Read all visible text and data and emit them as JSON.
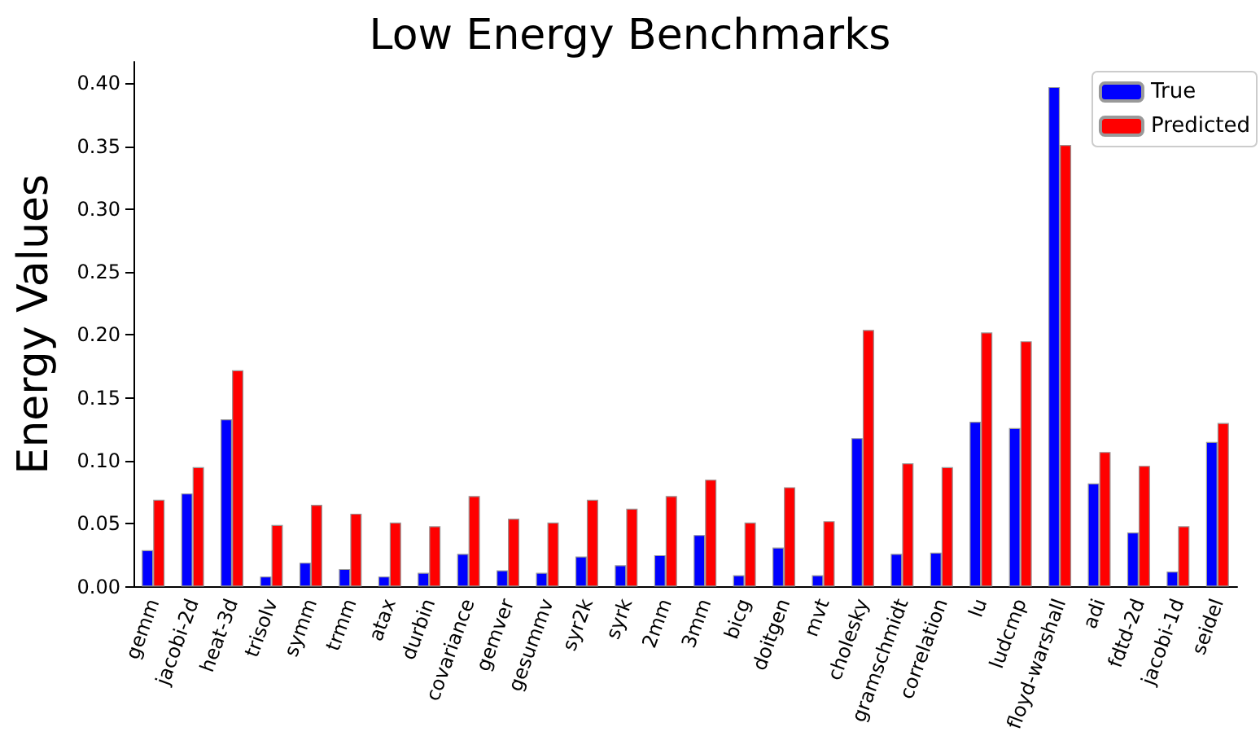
{
  "chart_data": {
    "type": "bar",
    "title": "Low Energy Benchmarks",
    "ylabel": "Energy Values",
    "categories": [
      "gemm",
      "jacobi-2d",
      "heat-3d",
      "trisolv",
      "symm",
      "trmm",
      "atax",
      "durbin",
      "covariance",
      "gemver",
      "gesummv",
      "syr2k",
      "syrk",
      "2mm",
      "3mm",
      "bicg",
      "doitgen",
      "mvt",
      "cholesky",
      "gramschmidt",
      "correlation",
      "lu",
      "ludcmp",
      "floyd-warshall",
      "adi",
      "fdtd-2d",
      "jacobi-1d",
      "seidel"
    ],
    "series": [
      {
        "name": "True",
        "color": "#0000ff",
        "values": [
          0.029,
          0.074,
          0.133,
          0.008,
          0.019,
          0.014,
          0.008,
          0.011,
          0.026,
          0.013,
          0.011,
          0.024,
          0.017,
          0.025,
          0.041,
          0.009,
          0.031,
          0.009,
          0.118,
          0.026,
          0.027,
          0.131,
          0.126,
          0.397,
          0.082,
          0.043,
          0.012,
          0.115
        ]
      },
      {
        "name": "Predicted",
        "color": "#ff0000",
        "values": [
          0.069,
          0.095,
          0.172,
          0.049,
          0.065,
          0.058,
          0.051,
          0.048,
          0.072,
          0.054,
          0.051,
          0.069,
          0.062,
          0.072,
          0.085,
          0.051,
          0.079,
          0.052,
          0.204,
          0.098,
          0.095,
          0.202,
          0.195,
          0.351,
          0.107,
          0.096,
          0.048,
          0.13
        ]
      }
    ],
    "ylim": [
      0,
      0.417
    ],
    "yticks": [
      {
        "value": 0,
        "label": "0.00"
      },
      {
        "value": 0.05,
        "label": "0.05"
      },
      {
        "value": 0.1,
        "label": "0.10"
      },
      {
        "value": 0.15,
        "label": "0.15"
      },
      {
        "value": 0.2,
        "label": "0.20"
      },
      {
        "value": 0.25,
        "label": "0.25"
      },
      {
        "value": 0.3,
        "label": "0.30"
      },
      {
        "value": 0.35,
        "label": "0.35"
      },
      {
        "value": 0.4,
        "label": "0.40"
      }
    ],
    "grid": false,
    "legend": "top right"
  }
}
